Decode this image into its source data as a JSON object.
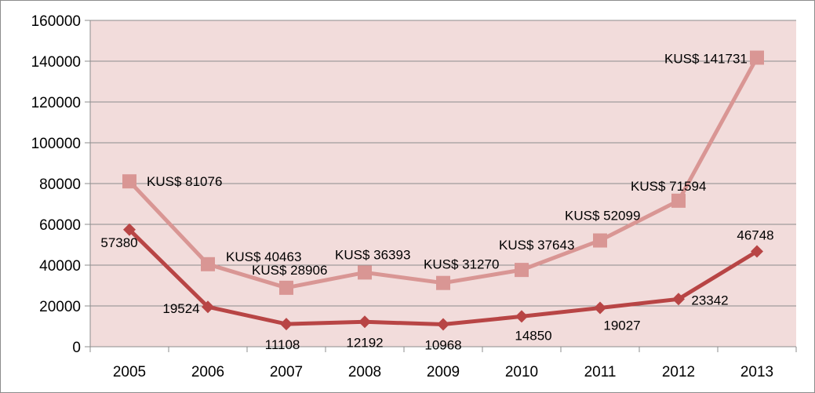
{
  "chart_data": {
    "type": "line",
    "title": "",
    "xlabel": "",
    "ylabel": "",
    "categories": [
      "2005",
      "2006",
      "2007",
      "2008",
      "2009",
      "2010",
      "2011",
      "2012",
      "2013"
    ],
    "ylim": [
      0,
      160000
    ],
    "y_ticks": [
      0,
      20000,
      40000,
      60000,
      80000,
      100000,
      120000,
      140000,
      160000
    ],
    "y_tick_labels": [
      "0",
      "20000",
      "40000",
      "60000",
      "80000",
      "100000",
      "120000",
      "140000",
      "160000"
    ],
    "grid": true,
    "legend": "none",
    "plot_background": "#f2dcdb",
    "series": [
      {
        "values": [
          81076,
          40463,
          28906,
          36393,
          31270,
          37643,
          52099,
          71594,
          141731
        ],
        "labels": [
          "KUS$ 81076",
          "KUS$ 40463",
          "KUS$ 28906",
          "KUS$ 36393",
          "KUS$ 31270",
          "KUS$ 37643",
          "KUS$ 52099",
          "KUS$ 71594",
          "KUS$ 141731"
        ],
        "color": "#d99694",
        "marker": "square"
      },
      {
        "values": [
          57380,
          19524,
          11108,
          12192,
          10968,
          14850,
          19027,
          23342,
          46748
        ],
        "labels": [
          "57380",
          "19524",
          "11108",
          "12192",
          "10968",
          "14850",
          "19027",
          "23342",
          "46748"
        ],
        "color": "#b84545",
        "marker": "diamond"
      }
    ]
  }
}
